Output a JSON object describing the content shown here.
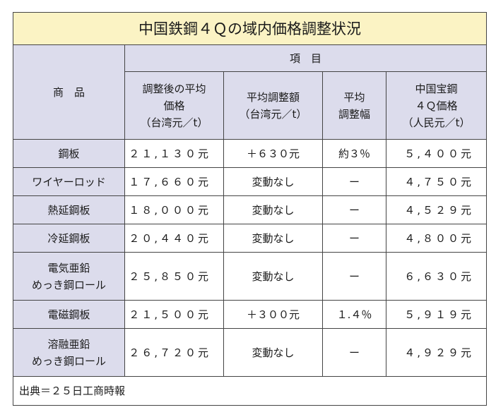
{
  "title": "中国鉄鋼４Ｑの域内価格調整状況",
  "header": {
    "product": "商　品",
    "items": "項　目",
    "columns": [
      "調整後の平均\n価格\n（台湾元／t）",
      "平均調整額\n（台湾元／t）",
      "平均\n調整幅",
      "中国宝鋼\n４Ｑ価格\n（人民元／t）"
    ]
  },
  "rows": [
    {
      "product": "鋼板",
      "avg_price": "２１,１３０元",
      "adjust_amount": "＋６３０元",
      "adjust_rate": "約３％",
      "baosteel_price": "５,４００元"
    },
    {
      "product": "ワイヤーロッド",
      "avg_price": "１７,６６０元",
      "adjust_amount": "変動なし",
      "adjust_rate": "ー",
      "baosteel_price": "４,７５０元"
    },
    {
      "product": "熱延鋼板",
      "avg_price": "１８,０００元",
      "adjust_amount": "変動なし",
      "adjust_rate": "ー",
      "baosteel_price": "４,５２９元"
    },
    {
      "product": "冷延鋼板",
      "avg_price": "２０,４４０元",
      "adjust_amount": "変動なし",
      "adjust_rate": "ー",
      "baosteel_price": "４,８００元"
    },
    {
      "product": "電気亜鉛\nめっき鋼ロール",
      "avg_price": "２５,８５０元",
      "adjust_amount": "変動なし",
      "adjust_rate": "ー",
      "baosteel_price": "６,６３０元"
    },
    {
      "product": "電磁鋼板",
      "avg_price": "２１,５００元",
      "adjust_amount": "＋３００元",
      "adjust_rate": "１.４％",
      "baosteel_price": "５,９１９元"
    },
    {
      "product": "溶融亜鉛\nめっき鋼ロール",
      "avg_price": "２６,７２０元",
      "adjust_amount": "変動なし",
      "adjust_rate": "ー",
      "baosteel_price": "４,９２９元"
    }
  ],
  "source": "出典＝２５日工商時報",
  "colors": {
    "title_bg": "#fbf3c4",
    "header_bg": "#dcdcec",
    "border": "#444444"
  }
}
